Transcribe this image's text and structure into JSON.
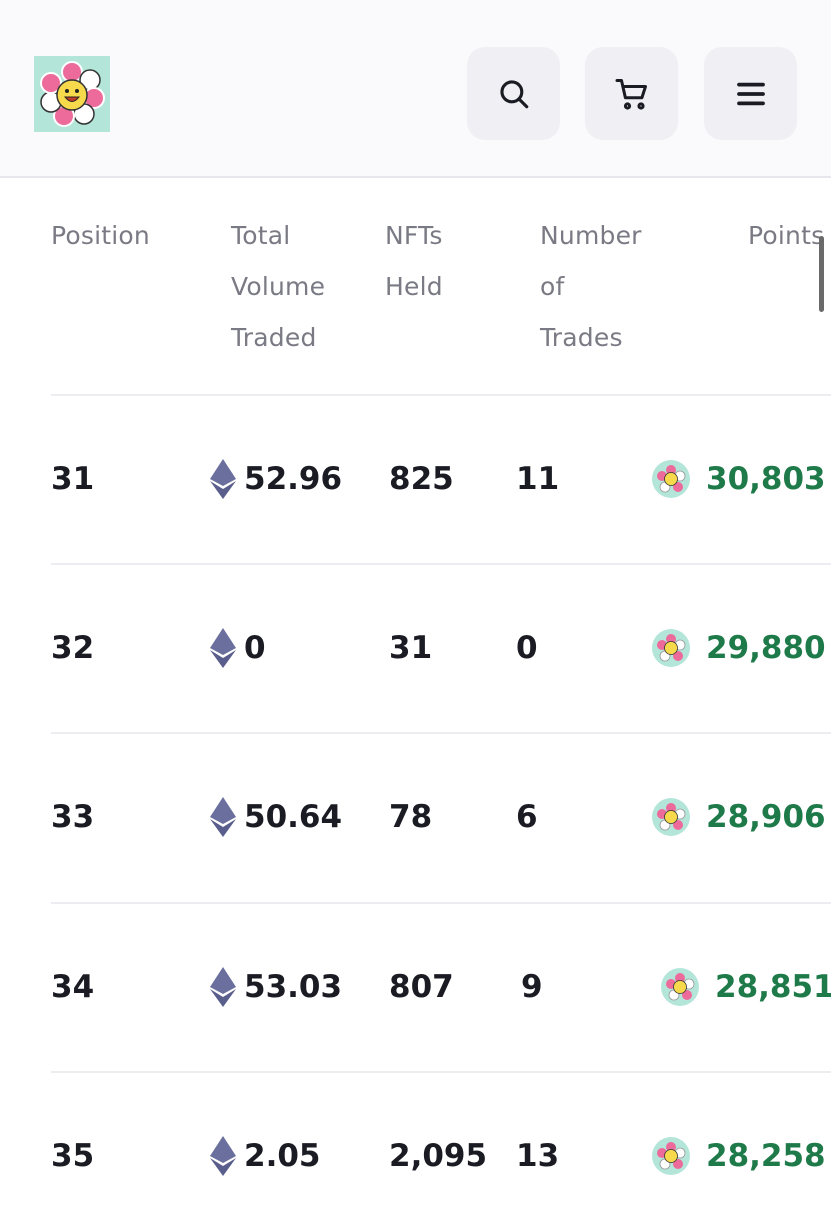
{
  "header": {
    "logo_icon": "flower-logo-icon",
    "search_icon": "search-icon",
    "cart_icon": "cart-icon",
    "menu_icon": "hamburger-menu-icon"
  },
  "table": {
    "columns": {
      "position": [
        "Position"
      ],
      "volume": [
        "Total",
        "Volume",
        "Traded"
      ],
      "nfts": [
        "NFTs",
        "Held"
      ],
      "trades": [
        "Number",
        "of",
        "Trades"
      ],
      "points": [
        "Points"
      ]
    },
    "rows": [
      {
        "position": "31",
        "volume": "52.96",
        "nfts": "825",
        "trades": "11",
        "points": "30,803"
      },
      {
        "position": "32",
        "volume": "0",
        "nfts": "31",
        "trades": "0",
        "points": "29,880"
      },
      {
        "position": "33",
        "volume": "50.64",
        "nfts": "78",
        "trades": "6",
        "points": "28,906"
      },
      {
        "position": "34",
        "volume": "53.03",
        "nfts": "807",
        "trades": "9",
        "points": "28,851"
      },
      {
        "position": "35",
        "volume": "2.05",
        "nfts": "2,095",
        "trades": "13",
        "points": "28,258"
      }
    ]
  },
  "colors": {
    "points_green": "#1f7a4a",
    "logo_bg": "#b3e6d9",
    "flower_petal": "#ec6b9a",
    "eth_icon": "#6b6f9e"
  }
}
